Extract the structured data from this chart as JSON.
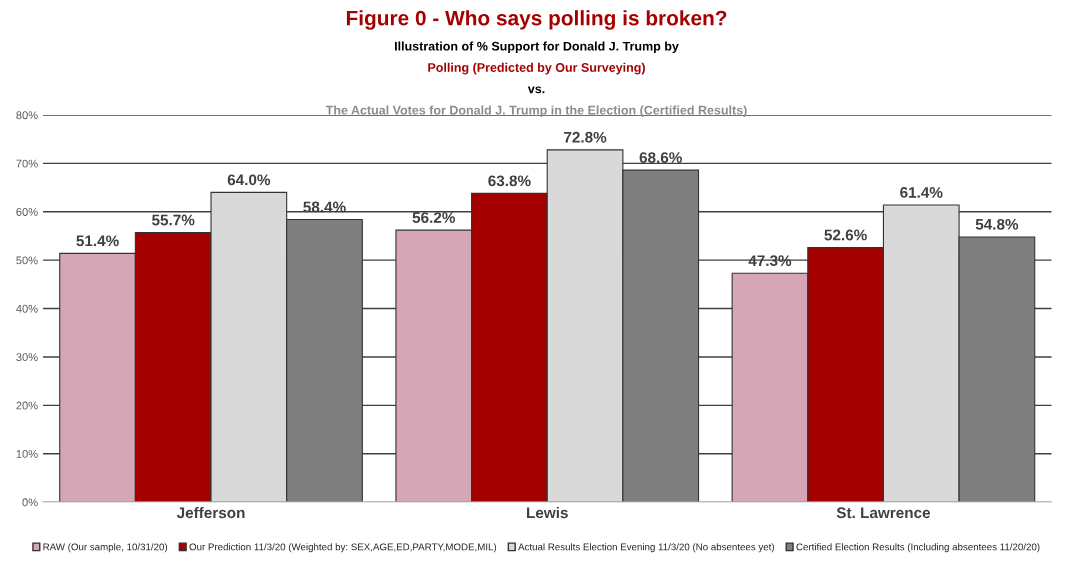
{
  "chart_data": {
    "type": "bar",
    "title": "Figure 0 - Who says polling is broken?",
    "subtitle": "Illustration of % Support for Donald J. Trump by\nPolling (Predicted by Our Surveying)\nvs.\nThe Actual Votes for Donald J. Trump in the Election (Certified Results)",
    "categories": [
      "Jefferson",
      "Lewis",
      "St. Lawrence"
    ],
    "series": [
      {
        "name": "RAW (Our sample, 10/31/20)",
        "color": "#d5a6b5",
        "values": [
          51.4,
          56.2,
          47.3
        ],
        "value_labels": [
          "51.4%",
          "56.2%",
          "47.3%"
        ]
      },
      {
        "name": "Our Prediction 11/3/20 (Weighted by: SEX,AGE,ED,PARTY,MODE,MIL)",
        "color": "#a50000",
        "values": [
          55.7,
          63.8,
          52.6
        ],
        "value_labels": [
          "55.7%",
          "63.8%",
          "52.6%"
        ]
      },
      {
        "name": "Actual Results Election Evening 11/3/20 (No absentees yet)",
        "color": "#d9d9d9",
        "values": [
          64.0,
          72.8,
          61.4
        ],
        "value_labels": [
          "64.0%",
          "72.8%",
          "61.4%"
        ]
      },
      {
        "name": "Certified Election Results (Including absentees 11/20/20)",
        "color": "#7f7f7f",
        "values": [
          58.4,
          68.6,
          54.8
        ],
        "value_labels": [
          "58.4%",
          "68.6%",
          "54.8%"
        ]
      }
    ],
    "ylim": [
      0,
      80
    ],
    "yticks": [
      {
        "value": 0,
        "label": "0%"
      },
      {
        "value": 10,
        "label": "10%"
      },
      {
        "value": 20,
        "label": "20%"
      },
      {
        "value": 30,
        "label": "30%"
      },
      {
        "value": 40,
        "label": "40%"
      },
      {
        "value": 50,
        "label": "50%"
      },
      {
        "value": 60,
        "label": "60%"
      },
      {
        "value": 70,
        "label": "70%"
      },
      {
        "value": 80,
        "label": "80%"
      }
    ],
    "grid": "y",
    "legend": "bottom"
  }
}
